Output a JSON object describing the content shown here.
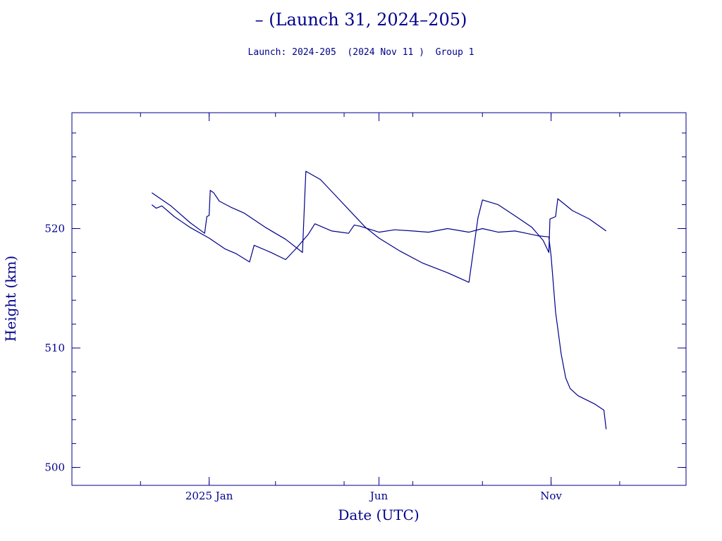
{
  "header": {
    "title": "– (Launch 31, 2024–205)",
    "subtitle": "Launch: 2024-205  (2024 Nov 11 )  Group 1"
  },
  "chart_data": {
    "type": "line",
    "title": "– (Launch 31, 2024–205)",
    "subtitle": "Launch: 2024-205  (2024 Nov 11 )  Group 1",
    "xlabel": "Date (UTC)",
    "ylabel": "Height (km)",
    "xlim": [
      "2024-09-01",
      "2026-03-01"
    ],
    "ylim": [
      498.5,
      529.7
    ],
    "x_ticks": [
      {
        "label": "2025 Jan",
        "date": "2025-01-01"
      },
      {
        "label": "Jun",
        "date": "2025-06-01"
      },
      {
        "label": "Nov",
        "date": "2025-11-01"
      }
    ],
    "y_ticks": [
      500,
      510,
      520
    ],
    "grid": false,
    "line_color": "#00008b",
    "series": [
      {
        "points": [
          [
            "2024-11-11",
            523.0
          ],
          [
            "2024-11-28",
            521.9
          ],
          [
            "2024-12-15",
            520.5
          ],
          [
            "2024-12-28",
            519.6
          ],
          [
            "2024-12-30",
            521.0
          ],
          [
            "2025-01-01",
            521.1
          ],
          [
            "2025-01-02",
            523.2
          ],
          [
            "2025-01-05",
            523.0
          ],
          [
            "2025-01-10",
            522.3
          ],
          [
            "2025-01-20",
            521.8
          ],
          [
            "2025-02-01",
            521.3
          ],
          [
            "2025-02-20",
            520.1
          ],
          [
            "2025-03-10",
            519.1
          ],
          [
            "2025-03-25",
            518.0
          ],
          [
            "2025-03-27",
            522.6
          ],
          [
            "2025-03-28",
            524.8
          ],
          [
            "2025-04-10",
            524.1
          ],
          [
            "2025-04-25",
            522.6
          ],
          [
            "2025-05-10",
            521.1
          ],
          [
            "2025-05-20",
            520.1
          ],
          [
            "2025-06-01",
            519.2
          ],
          [
            "2025-06-20",
            518.1
          ],
          [
            "2025-07-10",
            517.1
          ],
          [
            "2025-08-01",
            516.3
          ],
          [
            "2025-08-20",
            515.5
          ],
          [
            "2025-08-28",
            520.9
          ],
          [
            "2025-09-01",
            522.4
          ],
          [
            "2025-09-15",
            522.0
          ],
          [
            "2025-10-01",
            521.0
          ],
          [
            "2025-10-15",
            520.1
          ],
          [
            "2025-10-25",
            519.0
          ],
          [
            "2025-10-30",
            518.0
          ],
          [
            "2025-10-31",
            520.8
          ],
          [
            "2025-11-05",
            521.0
          ],
          [
            "2025-11-07",
            522.5
          ],
          [
            "2025-11-20",
            521.5
          ],
          [
            "2025-12-05",
            520.8
          ],
          [
            "2025-12-20",
            519.8
          ]
        ]
      },
      {
        "points": [
          [
            "2024-11-11",
            522.0
          ],
          [
            "2024-11-15",
            521.7
          ],
          [
            "2024-11-20",
            521.9
          ],
          [
            "2024-12-01",
            521.0
          ],
          [
            "2024-12-15",
            520.1
          ],
          [
            "2025-01-01",
            519.2
          ],
          [
            "2025-01-15",
            518.3
          ],
          [
            "2025-01-25",
            517.9
          ],
          [
            "2025-02-06",
            517.2
          ],
          [
            "2025-02-10",
            518.6
          ],
          [
            "2025-02-25",
            518.0
          ],
          [
            "2025-03-10",
            517.4
          ],
          [
            "2025-03-20",
            518.4
          ],
          [
            "2025-03-30",
            519.5
          ],
          [
            "2025-04-05",
            520.4
          ],
          [
            "2025-04-20",
            519.8
          ],
          [
            "2025-04-28",
            519.7
          ],
          [
            "2025-05-05",
            519.6
          ],
          [
            "2025-05-10",
            520.3
          ],
          [
            "2025-05-15",
            520.2
          ],
          [
            "2025-06-01",
            519.7
          ],
          [
            "2025-06-15",
            519.9
          ],
          [
            "2025-07-01",
            519.8
          ],
          [
            "2025-07-15",
            519.7
          ],
          [
            "2025-08-01",
            520.0
          ],
          [
            "2025-08-20",
            519.7
          ],
          [
            "2025-09-01",
            520.0
          ],
          [
            "2025-09-15",
            519.7
          ],
          [
            "2025-09-30",
            519.8
          ],
          [
            "2025-10-10",
            519.6
          ],
          [
            "2025-10-20",
            519.4
          ],
          [
            "2025-10-30",
            519.3
          ],
          [
            "2025-11-01",
            517.7
          ],
          [
            "2025-11-05",
            513.0
          ],
          [
            "2025-11-10",
            509.5
          ],
          [
            "2025-11-14",
            507.5
          ],
          [
            "2025-11-18",
            506.6
          ],
          [
            "2025-11-25",
            506.0
          ],
          [
            "2025-12-10",
            505.3
          ],
          [
            "2025-12-18",
            504.8
          ],
          [
            "2025-12-20",
            503.2
          ]
        ]
      }
    ]
  }
}
